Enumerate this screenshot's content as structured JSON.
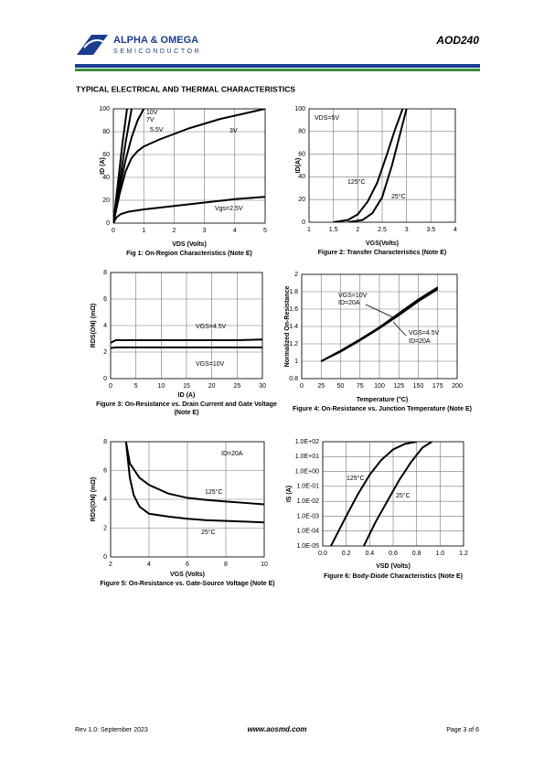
{
  "header": {
    "company": "ALPHA & OMEGA",
    "division": "SEMICONDUCTOR",
    "part": "AOD240"
  },
  "section_title": "TYPICAL ELECTRICAL AND THERMAL CHARACTERISTICS",
  "footer": {
    "revision": "Rev 1.0: September 2023",
    "website": "www.aosmd.com",
    "page": "Page 3 of 6"
  },
  "chart_data": [
    {
      "type": "line",
      "title": "Fig 1: On-Region Characteristics (Note E)",
      "xlabel": "VDS (Volts)",
      "ylabel": "ID (A)",
      "xlim": [
        0,
        5
      ],
      "ylim": [
        0,
        100
      ],
      "xticks": [
        0,
        1,
        2,
        3,
        4,
        5
      ],
      "yticks": [
        0,
        20,
        40,
        60,
        80,
        100
      ],
      "grid": true,
      "color": "#000000",
      "series": [
        {
          "name": "10V",
          "x": [
            0,
            0.15,
            0.3,
            0.45
          ],
          "values": [
            0,
            35,
            70,
            100
          ]
        },
        {
          "name": "7V",
          "x": [
            0,
            0.2,
            0.4,
            0.6
          ],
          "values": [
            0,
            35,
            70,
            100
          ]
        },
        {
          "name": "5.5V",
          "x": [
            0,
            0.2,
            0.4,
            0.6,
            0.8,
            1.0
          ],
          "values": [
            0,
            30,
            55,
            75,
            90,
            100
          ]
        },
        {
          "name": "3V",
          "x": [
            0,
            0.2,
            0.4,
            0.6,
            0.8,
            1,
            1.5,
            2,
            2.5,
            3,
            3.5,
            4,
            4.5,
            5
          ],
          "values": [
            0,
            25,
            45,
            57,
            63,
            67,
            73,
            78,
            83,
            87,
            91,
            94,
            97,
            100
          ]
        },
        {
          "name": "Vgs=2.5V",
          "x": [
            0,
            0.1,
            0.25,
            0.5,
            1,
            2,
            3,
            4,
            5
          ],
          "values": [
            0,
            5,
            8,
            10,
            12,
            15,
            18,
            21,
            23
          ]
        }
      ],
      "annotations": []
    },
    {
      "type": "line",
      "title": "Figure 2: Transfer Characteristics (Note E)",
      "xlabel": "VGS(Volts)",
      "ylabel": "ID(A)",
      "xlim": [
        1,
        4
      ],
      "ylim": [
        0,
        100
      ],
      "xticks": [
        1,
        1.5,
        2,
        2.5,
        3,
        3.5,
        4
      ],
      "yticks": [
        0,
        20,
        40,
        60,
        80,
        100
      ],
      "grid": true,
      "color": "#000000",
      "series": [
        {
          "name": "125°C",
          "x": [
            1.5,
            1.8,
            2.0,
            2.2,
            2.4,
            2.6,
            2.75,
            2.92
          ],
          "values": [
            0,
            2,
            7,
            18,
            35,
            60,
            80,
            100
          ]
        },
        {
          "name": "25°C",
          "x": [
            1.8,
            2.1,
            2.3,
            2.5,
            2.7,
            2.85,
            3.0
          ],
          "values": [
            0,
            2,
            8,
            22,
            50,
            75,
            100
          ]
        }
      ],
      "annotations": [
        "VDS=5V"
      ]
    },
    {
      "type": "line",
      "title": "Figure 3: On-Resistance vs. Drain Current and Gate Voltage (Note E)",
      "xlabel": "ID (A)",
      "ylabel": "RDS(ON) (mΩ)",
      "xlim": [
        0,
        30
      ],
      "ylim": [
        0,
        8
      ],
      "xticks": [
        0,
        5,
        10,
        15,
        20,
        25,
        30
      ],
      "yticks": [
        0,
        2,
        4,
        6,
        8
      ],
      "grid": true,
      "color": "#000000",
      "series": [
        {
          "name": "VGS=4.5V",
          "x": [
            0,
            1,
            5,
            10,
            15,
            20,
            25,
            30
          ],
          "values": [
            2.7,
            2.9,
            2.9,
            2.9,
            2.9,
            2.9,
            2.9,
            2.95
          ]
        },
        {
          "name": "VGS=10V",
          "x": [
            0,
            1,
            5,
            10,
            15,
            20,
            25,
            30
          ],
          "values": [
            2.3,
            2.35,
            2.35,
            2.35,
            2.35,
            2.35,
            2.35,
            2.35
          ]
        }
      ],
      "annotations": []
    },
    {
      "type": "line",
      "title": "Figure 4: On-Resistance vs. Junction Temperature (Note E)",
      "xlabel": "Temperature (°C)",
      "ylabel": "Normalized On-Resistance",
      "xlim": [
        0,
        200
      ],
      "ylim": [
        0.8,
        2
      ],
      "xticks": [
        0,
        25,
        50,
        75,
        100,
        125,
        150,
        175,
        200
      ],
      "yticks": [
        0.8,
        1,
        1.2,
        1.4,
        1.6,
        1.8,
        2
      ],
      "grid": true,
      "color": "#000000",
      "series": [
        {
          "name": "VGS=10V",
          "x": [
            25,
            50,
            75,
            100,
            125,
            150,
            175
          ],
          "values": [
            1.0,
            1.12,
            1.25,
            1.39,
            1.55,
            1.71,
            1.85
          ]
        },
        {
          "name": "VGS=4.5V",
          "x": [
            25,
            50,
            75,
            100,
            125,
            150,
            175
          ],
          "values": [
            1.0,
            1.11,
            1.24,
            1.38,
            1.53,
            1.69,
            1.83
          ]
        }
      ],
      "annotations": [
        "ID=20A",
        "ID=20A"
      ]
    },
    {
      "type": "line",
      "title": "Figure 5: On-Resistance vs. Gate-Source Voltage (Note E)",
      "xlabel": "VGS (Volts)",
      "ylabel": "RDS(ON) (mΩ)",
      "xlim": [
        2,
        10
      ],
      "ylim": [
        0,
        8
      ],
      "xticks": [
        2,
        4,
        6,
        8,
        10
      ],
      "yticks": [
        0,
        2,
        4,
        6,
        8
      ],
      "grid": true,
      "color": "#000000",
      "series": [
        {
          "name": "125°C",
          "x": [
            2.8,
            3,
            3.5,
            4,
            5,
            6,
            7,
            8,
            9,
            10
          ],
          "values": [
            8,
            6.5,
            5.5,
            5,
            4.4,
            4.1,
            3.95,
            3.85,
            3.75,
            3.65
          ]
        },
        {
          "name": "25°C",
          "x": [
            2.8,
            3,
            3.2,
            3.5,
            4,
            5,
            6,
            7,
            8,
            9,
            10
          ],
          "values": [
            8,
            5.5,
            4.3,
            3.5,
            3.0,
            2.8,
            2.65,
            2.55,
            2.5,
            2.45,
            2.4
          ]
        }
      ],
      "annotations": [
        "ID=20A"
      ]
    },
    {
      "type": "line",
      "title": "Figure 6: Body-Diode Characteristics (Note E)",
      "xlabel": "VSD (Volts)",
      "ylabel": "IS (A)",
      "log_y": true,
      "xlim": [
        0,
        1.2
      ],
      "ylim": [
        1e-05,
        100
      ],
      "xticks": [
        {
          "value": 0,
          "label": "0.0"
        },
        0.2,
        0.4,
        0.6,
        0.8,
        {
          "value": 1,
          "label": "1.0"
        },
        1.2
      ],
      "yticks": [
        {
          "value": 1e-05,
          "label": "1.0E-05"
        },
        {
          "value": 0.0001,
          "label": "1.0E-04"
        },
        {
          "value": 0.001,
          "label": "1.0E-03"
        },
        {
          "value": 0.01,
          "label": "1.0E-02"
        },
        {
          "value": 0.1,
          "label": "1.0E-01"
        },
        {
          "value": 1,
          "label": "1.0E+00"
        },
        {
          "value": 10,
          "label": "1.0E+01"
        },
        {
          "value": 100,
          "label": "1.0E+02"
        }
      ],
      "grid": true,
      "color": "#000000",
      "series": [
        {
          "name": "125°C",
          "x": [
            0.07,
            0.2,
            0.3,
            0.4,
            0.5,
            0.6,
            0.7,
            0.8
          ],
          "values": [
            1e-05,
            0.001,
            0.03,
            0.6,
            6,
            30,
            70,
            100
          ]
        },
        {
          "name": "25°C",
          "x": [
            0.35,
            0.45,
            0.55,
            0.65,
            0.75,
            0.85,
            0.93
          ],
          "values": [
            1e-05,
            0.0004,
            0.01,
            0.25,
            4,
            40,
            100
          ]
        }
      ],
      "annotations": []
    }
  ]
}
